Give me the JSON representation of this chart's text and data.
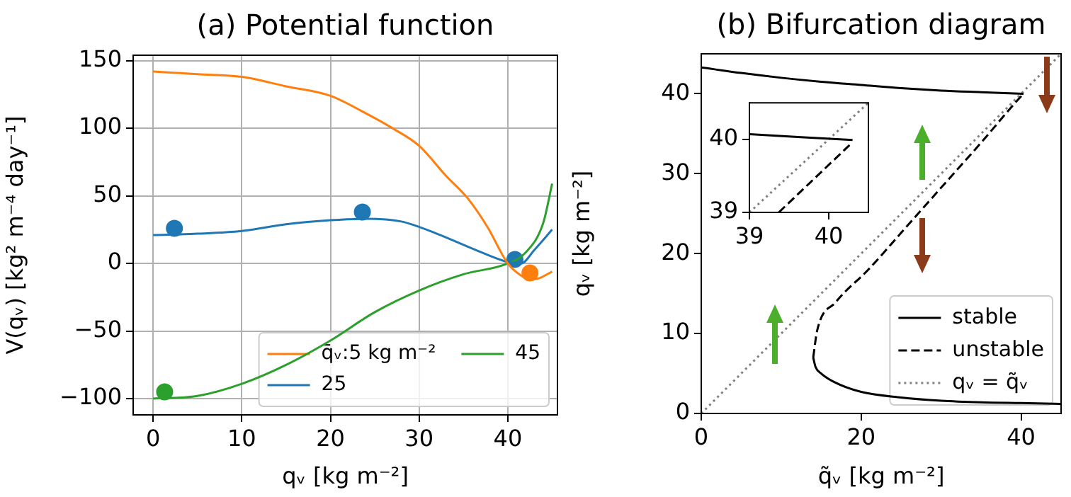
{
  "chart_data": [
    {
      "type": "line",
      "title": "(a) Potential function",
      "xlabel": "qᵥ [kg m⁻²]",
      "ylabel": "V(qᵥ) [kg² m⁻⁴ day⁻¹]",
      "xlim": [
        -2.25,
        45.6
      ],
      "ylim": [
        -112,
        154
      ],
      "xticks": [
        0,
        10,
        20,
        30,
        40
      ],
      "yticks": [
        {
          "value": -100,
          "label": "−100"
        },
        {
          "value": -50,
          "label": "−50"
        },
        0,
        50,
        100,
        150
      ],
      "grid": true,
      "legend": "bottom right",
      "marker": "none",
      "line_style": "solid",
      "series": [
        {
          "name": "q̄ᵥ:5 kg m⁻²",
          "color": "#ff7f0e",
          "x": [
            0,
            5,
            10,
            15,
            20,
            24,
            27,
            30,
            33,
            35.5,
            37.7,
            40,
            41.5,
            42.5,
            43.5,
            45
          ],
          "values": [
            142,
            140,
            138,
            131,
            124,
            111,
            100,
            87,
            65,
            48,
            27,
            0,
            -9,
            -12,
            -11,
            -6
          ]
        },
        {
          "name": "25",
          "color": "#1f77b4",
          "x": [
            0,
            5,
            10,
            15,
            20,
            24,
            28,
            32,
            36,
            40,
            41.5,
            43,
            45
          ],
          "values": [
            21,
            22,
            24,
            29,
            32,
            33,
            31,
            22,
            11,
            1,
            0,
            10,
            25
          ]
        },
        {
          "name": "45",
          "color": "#2ca02c",
          "x": [
            0,
            5,
            10,
            15,
            20,
            25,
            30,
            35,
            40,
            42,
            44,
            45
          ],
          "values": [
            -100,
            -98,
            -89,
            -75,
            -57,
            -36,
            -20,
            -8,
            0,
            8,
            30,
            59
          ]
        },
        {
          "type": "scatter",
          "marker": "circle",
          "color": "#1f77b4",
          "x": [
            2.4,
            23.6,
            40.8
          ],
          "values": [
            26,
            38,
            3
          ]
        },
        {
          "type": "scatter",
          "marker": "circle",
          "color": "#ff7f0e",
          "x": [
            42.5
          ],
          "values": [
            -7
          ]
        },
        {
          "type": "scatter",
          "marker": "circle",
          "color": "#2ca02c",
          "x": [
            1.3
          ],
          "values": [
            -95
          ]
        }
      ]
    },
    {
      "type": "line",
      "title": "(b) Bifurcation diagram",
      "xlabel": "q̃ᵥ [kg m⁻²]",
      "ylabel": "qᵥ [kg m⁻²]",
      "xlim": [
        0,
        45
      ],
      "ylim": [
        0,
        45
      ],
      "xticks": [
        0,
        20,
        40
      ],
      "yticks": [
        0,
        10,
        20,
        30,
        40
      ],
      "legend": "bottom right",
      "marker": "none",
      "series": [
        {
          "name": "stable",
          "color": "#000000",
          "line_style": "solid",
          "x": [
            0,
            5,
            10,
            15,
            20,
            25,
            30,
            35,
            40.3
          ],
          "values": [
            43.3,
            42.6,
            42,
            41.5,
            41.1,
            40.7,
            40.4,
            40.2,
            40
          ]
        },
        {
          "name": "unstable",
          "color": "#000000",
          "line_style": "dashed",
          "x": [
            14,
            14.5,
            16.8,
            20.9,
            25.7,
            30.4,
            35.1,
            39.37,
            40.3
          ],
          "values": [
            7,
            10.4,
            13.9,
            18,
            23.4,
            28.7,
            34,
            39,
            40
          ]
        },
        {
          "name": "qᵥ = q̃ᵥ",
          "color": "#808080",
          "line_style": "dotted",
          "x": [
            0,
            45
          ],
          "values": [
            0,
            45
          ]
        },
        {
          "color": "#000000",
          "line_style": "solid",
          "x": [
            14,
            14.3,
            15,
            16.5,
            20,
            25,
            30,
            35,
            40,
            45
          ],
          "values": [
            7,
            5.8,
            5,
            4,
            2.7,
            2,
            1.6,
            1.4,
            1.3,
            1.2
          ]
        }
      ]
    },
    {
      "type": "line",
      "xlim": [
        39,
        40.5
      ],
      "ylim": [
        39,
        40.5
      ],
      "xticks": [
        39,
        40
      ],
      "yticks": [
        39,
        40
      ],
      "marker": "none",
      "series": [
        {
          "color": "#000000",
          "line_style": "solid",
          "x": [
            39,
            40.3
          ],
          "values": [
            40.07,
            39.99
          ]
        },
        {
          "color": "#000000",
          "line_style": "dashed",
          "x": [
            39.37,
            40.3
          ],
          "values": [
            39,
            39.96
          ]
        },
        {
          "color": "#808080",
          "line_style": "dotted",
          "x": [
            39,
            40.5
          ],
          "values": [
            39,
            40.5
          ]
        }
      ]
    }
  ]
}
